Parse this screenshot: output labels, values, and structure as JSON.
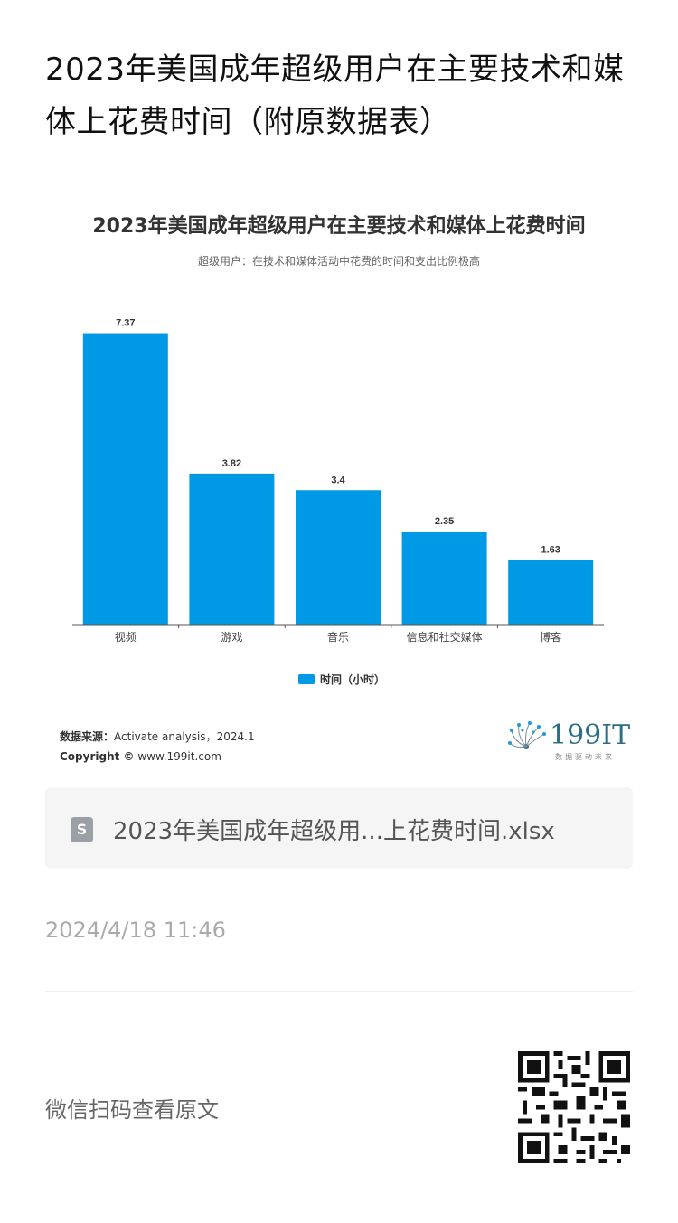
{
  "article": {
    "title": "2023年美国成年超级用户在主要技术和媒体上花费时间（附原数据表）"
  },
  "chart_data": {
    "type": "bar",
    "title": "2023年美国成年超级用户在主要技术和媒体上花费时间",
    "subtitle": "超级用户：在技术和媒体活动中花费的时间和支出比例极高",
    "categories": [
      "视频",
      "游戏",
      "音乐",
      "信息和社交媒体",
      "博客"
    ],
    "series": [
      {
        "name": "时间（小时）",
        "values": [
          7.37,
          3.82,
          3.4,
          2.35,
          1.63
        ],
        "color": "#0099e5"
      }
    ],
    "data_labels": [
      "7.37",
      "3.82",
      "3.4",
      "2.35",
      "1.63"
    ],
    "ylim": [
      0,
      8
    ],
    "grid": false,
    "legend": "bottom-center"
  },
  "source": {
    "label": "数据来源：",
    "text": "Activate analysis，2024.1",
    "copyright_label": "Copyright ©",
    "copyright_text": "www.199it.com"
  },
  "logo": {
    "text": "199IT",
    "tagline": "数据驱动未来"
  },
  "attachment": {
    "icon": "spreadsheet-file-icon",
    "icon_letter": "S",
    "filename": "2023年美国成年超级用...上花费时间.xlsx"
  },
  "meta": {
    "timestamp": "2024/4/18 11:46"
  },
  "footer": {
    "qr_prompt": "微信扫码查看原文",
    "qr_icon": "qr-code-icon"
  }
}
